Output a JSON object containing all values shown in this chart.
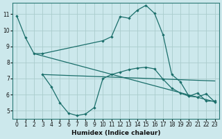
{
  "xlabel": "Humidex (Indice chaleur)",
  "ylabel": "",
  "xlim": [
    -0.5,
    23.5
  ],
  "ylim": [
    4.5,
    11.7
  ],
  "xticks": [
    0,
    1,
    2,
    3,
    4,
    5,
    6,
    7,
    8,
    9,
    10,
    11,
    12,
    13,
    14,
    15,
    16,
    17,
    18,
    19,
    20,
    21,
    22,
    23
  ],
  "yticks": [
    5,
    6,
    7,
    8,
    9,
    10,
    11
  ],
  "bg_color": "#cce8ec",
  "grid_color": "#aacccc",
  "line_color": "#1a6e6a",
  "lines": [
    {
      "x": [
        0,
        1,
        2,
        3,
        10,
        11,
        12,
        13,
        14,
        15,
        16,
        17,
        18,
        19,
        20,
        21,
        22,
        23
      ],
      "y": [
        10.9,
        9.55,
        8.55,
        8.55,
        9.35,
        9.6,
        10.85,
        10.75,
        11.25,
        11.55,
        11.05,
        9.7,
        7.25,
        6.8,
        5.9,
        6.1,
        5.6,
        5.6
      ],
      "has_markers": true
    },
    {
      "x": [
        3,
        4,
        5,
        6,
        7,
        8,
        9,
        10,
        11,
        12,
        13,
        14,
        15,
        16,
        17,
        18,
        19,
        20,
        21,
        22,
        23
      ],
      "y": [
        7.25,
        6.5,
        5.5,
        4.85,
        4.7,
        4.8,
        5.2,
        7.0,
        7.25,
        7.4,
        7.55,
        7.65,
        7.7,
        7.6,
        6.95,
        6.4,
        6.1,
        5.9,
        5.85,
        6.05,
        5.55
      ],
      "has_markers": true
    },
    {
      "x": [
        2,
        23
      ],
      "y": [
        8.55,
        5.55
      ],
      "has_markers": false
    },
    {
      "x": [
        3,
        23
      ],
      "y": [
        7.25,
        6.85
      ],
      "has_markers": false
    }
  ]
}
